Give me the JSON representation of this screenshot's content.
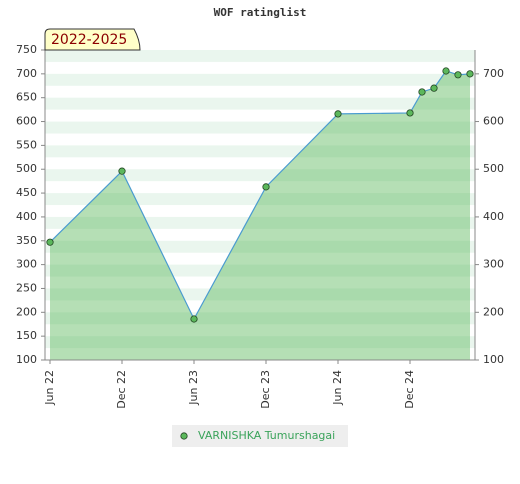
{
  "chart_data": {
    "type": "line",
    "title": "WOF ratinglist",
    "annotation": "2022-2025",
    "x": [
      "2022-06",
      "2022-12",
      "2023-06",
      "2023-12",
      "2024-06",
      "2024-12",
      "2025-01",
      "2025-02",
      "2025-03",
      "2025-04",
      "2025-05"
    ],
    "series": [
      {
        "name": "VARNISHKA Tumurshagai",
        "color": "#5cb85c",
        "values": [
          347,
          496,
          186,
          463,
          616,
          618,
          662,
          670,
          706,
          698,
          700
        ]
      }
    ],
    "xticks": [
      {
        "value": "2022-06",
        "label": "Jun 22"
      },
      {
        "value": "2022-12",
        "label": "Dec 22"
      },
      {
        "value": "2023-06",
        "label": "Jun 23"
      },
      {
        "value": "2023-12",
        "label": "Dec 23"
      },
      {
        "value": "2024-06",
        "label": "Jun 24"
      },
      {
        "value": "2024-12",
        "label": "Dec 24"
      }
    ],
    "ylim": [
      100,
      750
    ],
    "yticks": [
      100,
      150,
      200,
      250,
      300,
      350,
      400,
      450,
      500,
      550,
      600,
      650,
      700,
      750
    ],
    "y2lim": [
      100,
      750
    ],
    "y2ticks": [
      100,
      200,
      300,
      400,
      500,
      600,
      700
    ]
  }
}
